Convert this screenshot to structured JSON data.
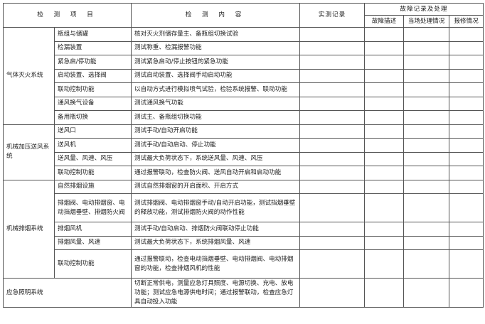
{
  "header": {
    "item": "检 测 项 目",
    "content": "检 测 内 容",
    "record": "实测记录",
    "fault_group": "故障记录及处理",
    "fault_desc": "故障描述",
    "onsite": "当场处理情况",
    "repair": "报修情况"
  },
  "groups": [
    {
      "system": "气体灭火系统",
      "rows": [
        {
          "item": "瓶组与储罐",
          "content": "核对灭火剂储存量主、备瓶组切换试验"
        },
        {
          "item": "检漏装置",
          "content": "测试称重、检漏报警功能"
        },
        {
          "item": "紧急启/停功能",
          "content": "测试紧急启动/停止按钮的紧急功能"
        },
        {
          "item": "启动装置、选择阀",
          "content": "测试启动装置、选择阀手动启动功能"
        },
        {
          "item": "联动控制功能",
          "content": "以自动方式进行模拟喷气试验，检验系统报警、联动功能"
        },
        {
          "item": "通风换气设备",
          "content": "测试通风换气功能"
        },
        {
          "item": "备用瓶切换",
          "content": "测试主、备瓶组切换功能"
        }
      ]
    },
    {
      "system": "机械加压送风系统",
      "rows": [
        {
          "item": "送风口",
          "content": "测试手动/自动开启功能"
        },
        {
          "item": "送风机",
          "content": "测试手动/自动启动、停止功能"
        },
        {
          "item": "送风量、风速、风压",
          "content": "测试最大负荷状态下，系统送风量、风速、风压"
        },
        {
          "item": "联动控制功能",
          "content": "通过报警联动，检查防火阀、送风自动开启和启动功能"
        }
      ]
    },
    {
      "system": "机械排烟系统",
      "rows": [
        {
          "item": "自然排烟设施",
          "content": "测试自然排烟窗的开启面积、开启方式"
        },
        {
          "item": "排烟阀、电动排烟窗、电动挡烟垂壁、排烟防火阀",
          "content": "测试排烟阀、电动排烟窗手动/自动开启功能，测试挡烟垂壁的释放功能，测试排烟防火阀的动作性能"
        },
        {
          "item": "排烟风机",
          "content": "测试手动/自动启动、排烟防火阀联动停止功能"
        },
        {
          "item": "排烟风量、风速",
          "content": "测试最大负荷状态下，系统排烟风量、风速"
        },
        {
          "item": "联动控制功能",
          "content": "通过报警联动，检查电动挡烟垂壁、电动排烟阀、电动排烟窗的功能，检查排烟风机的性能"
        }
      ]
    },
    {
      "system": "应急照明系统",
      "rows": [
        {
          "item": "",
          "content": "切断正常供电，测量应急灯具照度、电源切换、充电、放电功能；测试应急电源供电时间；通过报警联动，检查应急灯具自动投入功能"
        }
      ]
    }
  ]
}
